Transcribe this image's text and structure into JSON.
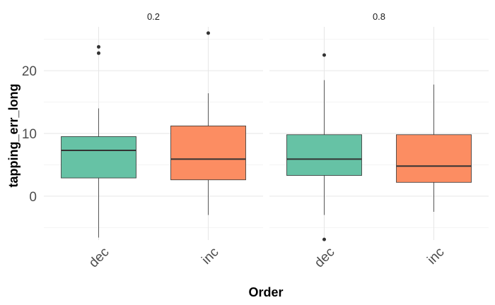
{
  "chart_data": {
    "type": "boxplot",
    "xlabel": "Order",
    "ylabel": "tapping_err_long",
    "ylim": [
      -7,
      27
    ],
    "yticks": [
      0,
      10,
      20
    ],
    "grid": true,
    "categories": [
      "dec",
      "inc"
    ],
    "fill_colors": {
      "dec": "#66c2a5",
      "inc": "#fc8d62"
    },
    "facets": [
      {
        "label": "0.2",
        "boxes": [
          {
            "category": "dec",
            "whisker_low": -6.6,
            "q1": 2.9,
            "median": 7.3,
            "q3": 9.5,
            "whisker_high": 14.0,
            "outliers": [
              22.8,
              23.8
            ]
          },
          {
            "category": "inc",
            "whisker_low": -3.0,
            "q1": 2.6,
            "median": 5.9,
            "q3": 11.2,
            "whisker_high": 16.4,
            "outliers": [
              26.0
            ]
          }
        ]
      },
      {
        "label": "0.8",
        "boxes": [
          {
            "category": "dec",
            "whisker_low": -3.0,
            "q1": 3.3,
            "median": 5.9,
            "q3": 9.8,
            "whisker_high": 18.5,
            "outliers": [
              22.5,
              -6.9
            ]
          },
          {
            "category": "inc",
            "whisker_low": -2.5,
            "q1": 2.2,
            "median": 4.8,
            "q3": 9.8,
            "whisker_high": 17.8,
            "outliers": []
          }
        ]
      }
    ]
  }
}
